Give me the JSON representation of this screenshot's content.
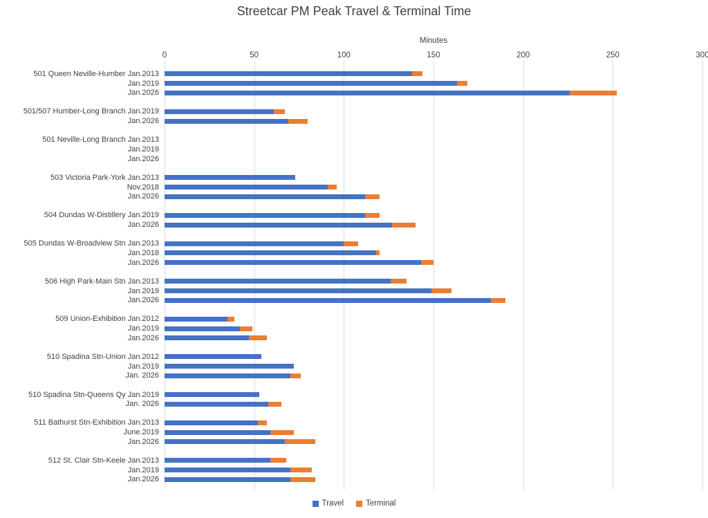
{
  "title": "Streetcar PM Peak Travel & Terminal Time",
  "legend": {
    "items": [
      {
        "label": "Travel",
        "color": "#4472C4"
      },
      {
        "label": "Terminal",
        "color": "#ED7D31"
      }
    ]
  },
  "chart_data": {
    "type": "bar",
    "orientation": "horizontal",
    "stacked": true,
    "title": "Streetcar PM Peak Travel & Terminal Time",
    "xlabel": "Minutes",
    "xlim": [
      0,
      300
    ],
    "ticks": [
      0,
      50,
      100,
      150,
      200,
      250,
      300
    ],
    "grid": true,
    "legend_position": "bottom",
    "series_names": [
      "Travel",
      "Terminal"
    ],
    "colors": {
      "travel": "#4472C4",
      "terminal": "#ED7D31"
    },
    "groups": [
      {
        "route": "501 Queen Neville-Humber",
        "rows": [
          {
            "period": "Jan.2013",
            "travel": 138,
            "terminal": 6
          },
          {
            "period": "Jan.2019",
            "travel": 163,
            "terminal": 6
          },
          {
            "period": "Jan.2026",
            "travel": 226,
            "terminal": 26
          }
        ]
      },
      {
        "route": "501/507 Humber-Long Branch",
        "rows": [
          {
            "period": "Jan.2019",
            "travel": 61,
            "terminal": 6
          },
          {
            "period": "Jan.2026",
            "travel": 69,
            "terminal": 11
          }
        ]
      },
      {
        "route": "501 Neville-Long Branch",
        "rows": [
          {
            "period": "Jan.2013",
            "travel": 0,
            "terminal": 0
          },
          {
            "period": "Jan.2019",
            "travel": 0,
            "terminal": 0
          },
          {
            "period": "Jan.2026",
            "travel": 0,
            "terminal": 0
          }
        ]
      },
      {
        "route": "503 Victoria Park-York",
        "rows": [
          {
            "period": "Jan.2013",
            "travel": 73,
            "terminal": 0
          },
          {
            "period": "Nov.2018",
            "travel": 91,
            "terminal": 5
          },
          {
            "period": "Jan.2026",
            "travel": 112,
            "terminal": 8
          }
        ]
      },
      {
        "route": "504 Dundas W-Distillery",
        "rows": [
          {
            "period": "Jan.2019",
            "travel": 112,
            "terminal": 8
          },
          {
            "period": "Jan.2026",
            "travel": 127,
            "terminal": 13
          }
        ]
      },
      {
        "route": "505 Dundas W-Broadview Stn",
        "rows": [
          {
            "period": "Jan.2013",
            "travel": 100,
            "terminal": 8
          },
          {
            "period": "Jan.2018",
            "travel": 118,
            "terminal": 2
          },
          {
            "period": "Jan.2026",
            "travel": 143,
            "terminal": 7
          }
        ]
      },
      {
        "route": "506 High Park-Main Stn",
        "rows": [
          {
            "period": "Jan.2013",
            "travel": 126,
            "terminal": 9
          },
          {
            "period": "Jan.2019",
            "travel": 149,
            "terminal": 11
          },
          {
            "period": "Jan.2026",
            "travel": 182,
            "terminal": 8
          }
        ]
      },
      {
        "route": "509 Union-Exhibition",
        "rows": [
          {
            "period": "Jan.2012",
            "travel": 35,
            "terminal": 4
          },
          {
            "period": "Jan.2019",
            "travel": 42,
            "terminal": 7
          },
          {
            "period": "Jan.2026",
            "travel": 47,
            "terminal": 10
          }
        ]
      },
      {
        "route": "510 Spadina Stn-Union",
        "rows": [
          {
            "period": "Jan.2012",
            "travel": 54,
            "terminal": 0
          },
          {
            "period": "Jan.2019",
            "travel": 72,
            "terminal": 0
          },
          {
            "period": "Jan. 2026",
            "travel": 70,
            "terminal": 6
          }
        ]
      },
      {
        "route": "510 Spadina Stn-Queens Qy",
        "rows": [
          {
            "period": "Jan.2019",
            "travel": 53,
            "terminal": 0
          },
          {
            "period": "Jan. 2026",
            "travel": 58,
            "terminal": 7
          }
        ]
      },
      {
        "route": "511 Bathurst Stn-Exhibition",
        "rows": [
          {
            "period": "Jan.2013",
            "travel": 52,
            "terminal": 5
          },
          {
            "period": "June.2019",
            "travel": 59,
            "terminal": 13
          },
          {
            "period": "Jan.2026",
            "travel": 67,
            "terminal": 17
          }
        ]
      },
      {
        "route": "512 St. Clair Stn-Keele",
        "rows": [
          {
            "period": "Jan.2013",
            "travel": 59,
            "terminal": 9
          },
          {
            "period": "Jan.2019",
            "travel": 70,
            "terminal": 12
          },
          {
            "period": "Jan.2026",
            "travel": 70,
            "terminal": 14
          }
        ]
      }
    ]
  }
}
